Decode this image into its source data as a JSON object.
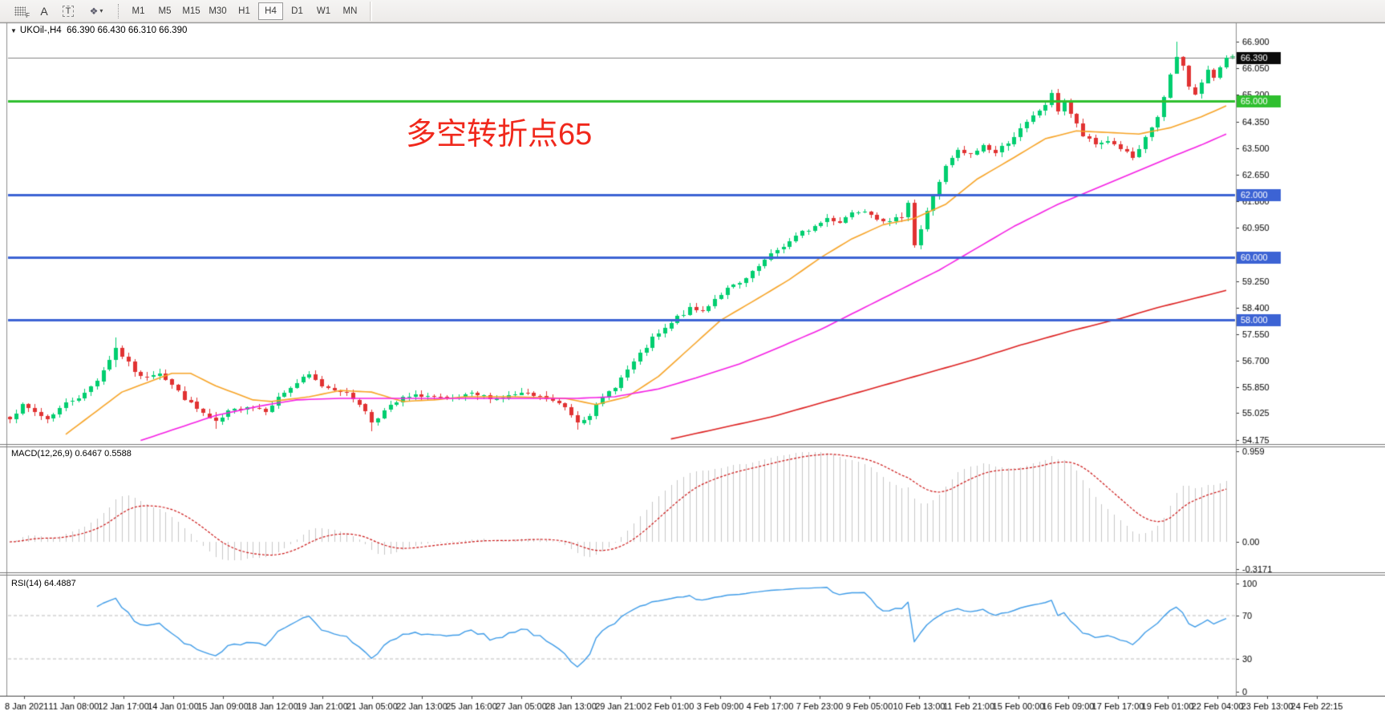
{
  "toolbar": {
    "grid_f": "F",
    "tool_a": "A",
    "tool_t": "T",
    "shapes_glyph": "❖",
    "caret": "▼",
    "timeframes": [
      "M1",
      "M5",
      "M15",
      "M30",
      "H1",
      "H4",
      "D1",
      "W1",
      "MN"
    ],
    "active_timeframe": "H4"
  },
  "chart": {
    "dropdown_arrow": "▼",
    "symbol_period": "UKOil-,H4",
    "ohlc": "66.390 66.430 66.310 66.390",
    "price_axis_labels": [
      "66.900",
      "66.050",
      "65.200",
      "64.350",
      "63.500",
      "62.650",
      "61.800",
      "60.950",
      "59.250",
      "58.400",
      "57.550",
      "56.700",
      "55.850",
      "55.025",
      "54.175"
    ],
    "current_price": {
      "label": "66.390",
      "value": 66.39,
      "line_color": "#848484",
      "box_color": "#0a0a0a"
    },
    "hlines": [
      {
        "label": "65.000",
        "value": 65.0,
        "color": "#2fbf2f"
      },
      {
        "label": "62.000",
        "value": 62.0,
        "color": "#3c63d4"
      },
      {
        "label": "60.000",
        "value": 60.0,
        "color": "#3c63d4"
      },
      {
        "label": "58.000",
        "value": 58.0,
        "color": "#3c63d4"
      }
    ],
    "annotation": {
      "text": "多空转折点65",
      "color": "#f0281c"
    },
    "time_axis_labels": [
      "8 Jan 2021",
      "11 Jan 08:00",
      "12 Jan 17:00",
      "14 Jan 01:00",
      "15 Jan 09:00",
      "18 Jan 12:00",
      "19 Jan 21:00",
      "21 Jan 05:00",
      "22 Jan 13:00",
      "25 Jan 16:00",
      "27 Jan 05:00",
      "28 Jan 13:00",
      "29 Jan 21:00",
      "2 Feb 01:00",
      "3 Feb 09:00",
      "4 Feb 17:00",
      "7 Feb 23:00",
      "9 Feb 05:00",
      "10 Feb 13:00",
      "11 Feb 21:00",
      "15 Feb 00:00",
      "16 Feb 09:00",
      "17 Feb 17:00",
      "19 Feb 01:00",
      "22 Feb 04:00",
      "23 Feb 13:00",
      "24 Feb 22:15"
    ]
  },
  "indicators": {
    "macd": {
      "name": "MACD(12,26,9)",
      "values": "0.6467 0.5588"
    },
    "rsi": {
      "name": "RSI(14)",
      "value": "64.4887"
    }
  },
  "macd_panel": {
    "axis_labels": [
      "0.959",
      "0.00",
      "-0.3171"
    ]
  },
  "rsi_panel": {
    "axis_labels": [
      "100",
      "70",
      "30",
      "0"
    ],
    "levels": [
      70,
      30
    ]
  },
  "chart_data": {
    "type": "candlestick",
    "symbol": "UKOil-",
    "period": "H4",
    "bars": 196,
    "seed": 7,
    "visible_price_range": [
      54.175,
      66.9
    ],
    "colors": {
      "up": "#00ce6f",
      "down": "#e13232",
      "ma_fast": "#f7a427",
      "ma_mid": "#f51fe4",
      "ma_slow": "#dd2020",
      "macd_hist": "#c8c8c8",
      "macd_signal": "#cc1515",
      "rsi": "#3f9ce8"
    },
    "price_anchors": [
      [
        0,
        54.9
      ],
      [
        2,
        55.25
      ],
      [
        4,
        55.05
      ],
      [
        6,
        54.85
      ],
      [
        9,
        55.35
      ],
      [
        12,
        55.65
      ],
      [
        14,
        56.1
      ],
      [
        16,
        56.75
      ],
      [
        17,
        57.1
      ],
      [
        19,
        56.6
      ],
      [
        21,
        56.15
      ],
      [
        24,
        56.35
      ],
      [
        27,
        55.7
      ],
      [
        30,
        55.15
      ],
      [
        33,
        54.7
      ],
      [
        35,
        55.05
      ],
      [
        38,
        55.25
      ],
      [
        41,
        55.15
      ],
      [
        44,
        55.7
      ],
      [
        46,
        56.0
      ],
      [
        48,
        56.25
      ],
      [
        50,
        55.9
      ],
      [
        53,
        55.75
      ],
      [
        56,
        55.35
      ],
      [
        58,
        54.75
      ],
      [
        60,
        55.1
      ],
      [
        63,
        55.5
      ],
      [
        66,
        55.6
      ],
      [
        70,
        55.45
      ],
      [
        74,
        55.6
      ],
      [
        78,
        55.5
      ],
      [
        82,
        55.65
      ],
      [
        86,
        55.5
      ],
      [
        89,
        55.2
      ],
      [
        91,
        54.75
      ],
      [
        93,
        55.0
      ],
      [
        95,
        55.5
      ],
      [
        97,
        55.9
      ],
      [
        99,
        56.4
      ],
      [
        101,
        56.9
      ],
      [
        103,
        57.4
      ],
      [
        105,
        57.7
      ],
      [
        107,
        58.1
      ],
      [
        109,
        58.35
      ],
      [
        111,
        58.3
      ],
      [
        113,
        58.7
      ],
      [
        115,
        59.0
      ],
      [
        117,
        59.15
      ],
      [
        119,
        59.5
      ],
      [
        121,
        59.9
      ],
      [
        123,
        60.25
      ],
      [
        125,
        60.5
      ],
      [
        127,
        60.8
      ],
      [
        129,
        61.0
      ],
      [
        131,
        61.25
      ],
      [
        133,
        61.15
      ],
      [
        135,
        61.45
      ],
      [
        137,
        61.55
      ],
      [
        139,
        61.3
      ],
      [
        141,
        61.1
      ],
      [
        143,
        61.35
      ],
      [
        144,
        61.8
      ],
      [
        145,
        60.4
      ],
      [
        146,
        60.9
      ],
      [
        148,
        62.0
      ],
      [
        150,
        62.9
      ],
      [
        152,
        63.4
      ],
      [
        154,
        63.25
      ],
      [
        156,
        63.6
      ],
      [
        158,
        63.35
      ],
      [
        160,
        63.7
      ],
      [
        162,
        64.1
      ],
      [
        164,
        64.5
      ],
      [
        166,
        64.9
      ],
      [
        167,
        65.2
      ],
      [
        168,
        64.7
      ],
      [
        169,
        65.0
      ],
      [
        170,
        64.6
      ],
      [
        172,
        63.9
      ],
      [
        174,
        63.6
      ],
      [
        176,
        63.75
      ],
      [
        178,
        63.5
      ],
      [
        180,
        63.2
      ],
      [
        181,
        63.4
      ],
      [
        182,
        63.8
      ],
      [
        184,
        64.5
      ],
      [
        185,
        65.1
      ],
      [
        186,
        65.8
      ],
      [
        187,
        66.4
      ],
      [
        188,
        66.1
      ],
      [
        189,
        65.5
      ],
      [
        190,
        65.2
      ],
      [
        191,
        65.6
      ],
      [
        192,
        66.0
      ],
      [
        193,
        65.7
      ],
      [
        194,
        66.1
      ],
      [
        195,
        66.39
      ]
    ],
    "wick_overrides": [
      [
        17,
        57.45,
        56.5
      ],
      [
        33,
        55.05,
        54.5
      ],
      [
        58,
        55.15,
        54.45
      ],
      [
        91,
        55.1,
        54.5
      ],
      [
        145,
        61.85,
        60.3
      ],
      [
        187,
        66.9,
        65.95
      ]
    ],
    "moving_averages": [
      {
        "name": "ma-fast-orange",
        "color": "#f7a427",
        "anchors": [
          [
            9,
            54.35
          ],
          [
            18,
            55.7
          ],
          [
            26,
            56.3
          ],
          [
            29,
            56.3
          ],
          [
            33,
            55.9
          ],
          [
            39,
            55.45
          ],
          [
            42,
            55.4
          ],
          [
            48,
            55.55
          ],
          [
            53,
            55.75
          ],
          [
            58,
            55.7
          ],
          [
            63,
            55.4
          ],
          [
            68,
            55.45
          ],
          [
            73,
            55.55
          ],
          [
            81,
            55.55
          ],
          [
            89,
            55.5
          ],
          [
            94,
            55.3
          ],
          [
            99,
            55.55
          ],
          [
            104,
            56.2
          ],
          [
            109,
            57.1
          ],
          [
            114,
            58.0
          ],
          [
            120,
            58.7
          ],
          [
            125,
            59.3
          ],
          [
            130,
            60.0
          ],
          [
            135,
            60.6
          ],
          [
            140,
            61.05
          ],
          [
            145,
            61.25
          ],
          [
            150,
            61.7
          ],
          [
            155,
            62.5
          ],
          [
            161,
            63.2
          ],
          [
            166,
            63.8
          ],
          [
            171,
            64.05
          ],
          [
            176,
            64.0
          ],
          [
            181,
            63.95
          ],
          [
            186,
            64.15
          ],
          [
            191,
            64.5
          ],
          [
            195,
            64.85
          ]
        ]
      },
      {
        "name": "ma-mid-magenta",
        "color": "#f51fe4",
        "anchors": [
          [
            21,
            54.15
          ],
          [
            27,
            54.55
          ],
          [
            33,
            54.95
          ],
          [
            40,
            55.25
          ],
          [
            46,
            55.45
          ],
          [
            53,
            55.5
          ],
          [
            66,
            55.5
          ],
          [
            78,
            55.5
          ],
          [
            91,
            55.5
          ],
          [
            97,
            55.55
          ],
          [
            104,
            55.8
          ],
          [
            110,
            56.15
          ],
          [
            117,
            56.6
          ],
          [
            123,
            57.1
          ],
          [
            130,
            57.7
          ],
          [
            136,
            58.3
          ],
          [
            142,
            58.9
          ],
          [
            149,
            59.6
          ],
          [
            155,
            60.3
          ],
          [
            161,
            61.0
          ],
          [
            168,
            61.7
          ],
          [
            174,
            62.2
          ],
          [
            180,
            62.7
          ],
          [
            186,
            63.2
          ],
          [
            191,
            63.6
          ],
          [
            195,
            63.95
          ]
        ]
      },
      {
        "name": "ma-slow-red",
        "color": "#dd2020",
        "anchors": [
          [
            106,
            54.2
          ],
          [
            114,
            54.55
          ],
          [
            122,
            54.9
          ],
          [
            130,
            55.35
          ],
          [
            138,
            55.8
          ],
          [
            146,
            56.25
          ],
          [
            154,
            56.7
          ],
          [
            162,
            57.2
          ],
          [
            170,
            57.65
          ],
          [
            178,
            58.05
          ],
          [
            184,
            58.4
          ],
          [
            190,
            58.7
          ],
          [
            195,
            58.95
          ]
        ]
      }
    ],
    "macd": {
      "params": [
        12,
        26,
        9
      ],
      "axis": {
        "top": 0.959,
        "zero": 0.0,
        "bottom": -0.3171
      }
    },
    "rsi": {
      "period": 14,
      "levels": [
        70,
        30
      ]
    }
  }
}
